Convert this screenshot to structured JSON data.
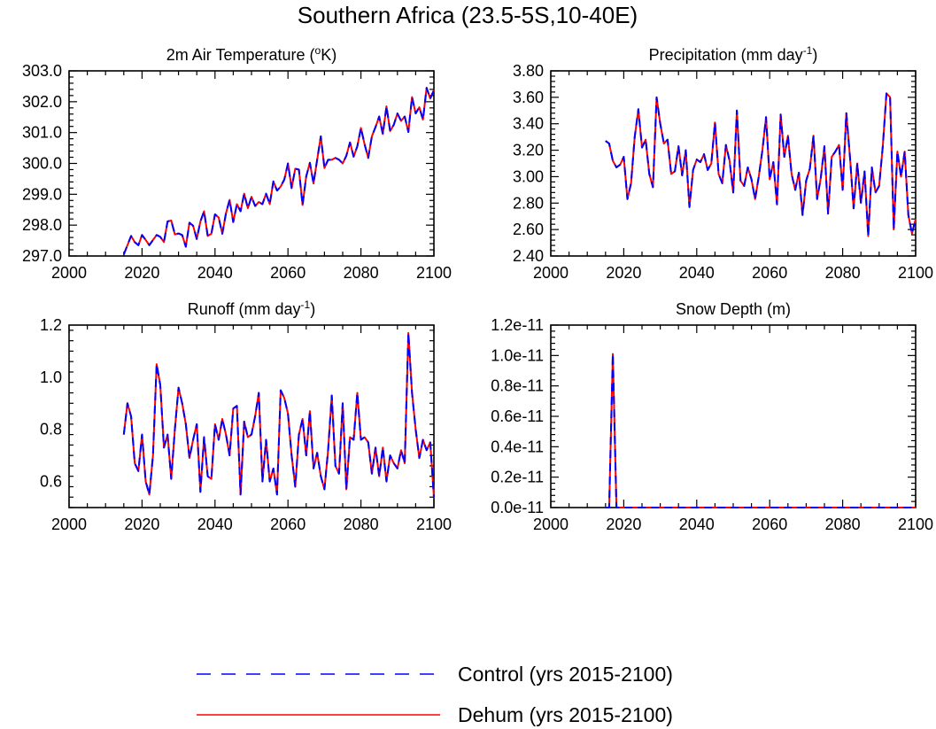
{
  "figure": {
    "title": "Southern Africa (23.5-5S,10-40E)"
  },
  "colors": {
    "control": "#0000ff",
    "dehum": "#ff0000",
    "axis": "#000000",
    "background": "#ffffff"
  },
  "legend": {
    "placement": "bottom-center",
    "entries": [
      {
        "name": "Control (yrs 2015-2100)",
        "color": "#0000ff",
        "style": "dashed"
      },
      {
        "name": "Dehum (yrs 2015-2100)",
        "color": "#ff0000",
        "style": "solid"
      }
    ]
  },
  "chart_data": [
    {
      "type": "line",
      "title": "2m Air Temperature (oK)",
      "title_parts": [
        "2m Air Temperature (",
        "o",
        "K)"
      ],
      "xlabel": "",
      "ylabel": "",
      "xlim": [
        2000,
        2100
      ],
      "ylim": [
        297.0,
        303.0
      ],
      "xticks": [
        2000,
        2020,
        2040,
        2060,
        2080,
        2100
      ],
      "yticks": [
        297.0,
        298.0,
        299.0,
        300.0,
        301.0,
        302.0,
        303.0
      ],
      "ytick_labels": [
        "297.0",
        "298.0",
        "299.0",
        "300.0",
        "301.0",
        "302.0",
        "303.0"
      ],
      "grid": false,
      "x_start": 2015,
      "series": [
        {
          "name": "Control (yrs 2015-2100)",
          "values": [
            297.05,
            297.35,
            297.65,
            297.45,
            297.35,
            297.68,
            297.52,
            297.35,
            297.52,
            297.68,
            297.62,
            297.45,
            298.12,
            298.15,
            297.7,
            297.73,
            297.68,
            297.3,
            298.08,
            297.98,
            297.55,
            298.12,
            298.45,
            297.65,
            297.72,
            298.35,
            298.25,
            297.72,
            298.38,
            298.82,
            298.1,
            298.68,
            298.45,
            299.02,
            298.55,
            298.92,
            298.62,
            298.75,
            298.68,
            299.02,
            298.68,
            299.42,
            299.12,
            299.25,
            299.48,
            300.0,
            299.2,
            299.83,
            299.8,
            298.65,
            299.58,
            300.02,
            299.35,
            300.12,
            300.88,
            299.85,
            300.12,
            300.12,
            300.18,
            300.12,
            300.0,
            300.25,
            300.68,
            300.22,
            300.55,
            301.15,
            300.62,
            300.18,
            300.88,
            301.18,
            301.52,
            300.95,
            301.85,
            301.05,
            301.25,
            301.62,
            301.38,
            301.52,
            301.02,
            302.15,
            301.62,
            301.82,
            301.42,
            302.45,
            302.1,
            302.38
          ]
        },
        {
          "name": "Dehum (yrs 2015-2100)",
          "values": [
            297.05,
            297.35,
            297.65,
            297.45,
            297.35,
            297.68,
            297.52,
            297.35,
            297.52,
            297.68,
            297.62,
            297.45,
            298.12,
            298.15,
            297.7,
            297.73,
            297.68,
            297.3,
            298.08,
            297.98,
            297.55,
            298.12,
            298.45,
            297.65,
            297.72,
            298.35,
            298.25,
            297.72,
            298.38,
            298.82,
            298.1,
            298.68,
            298.45,
            299.02,
            298.55,
            298.92,
            298.62,
            298.75,
            298.68,
            299.02,
            298.68,
            299.42,
            299.12,
            299.25,
            299.48,
            300.0,
            299.2,
            299.83,
            299.8,
            298.65,
            299.58,
            300.02,
            299.35,
            300.12,
            300.88,
            299.85,
            300.12,
            300.12,
            300.18,
            300.12,
            300.0,
            300.25,
            300.68,
            300.22,
            300.55,
            301.15,
            300.62,
            300.18,
            300.88,
            301.18,
            301.52,
            300.95,
            301.85,
            301.05,
            301.25,
            301.62,
            301.38,
            301.52,
            301.02,
            302.15,
            301.62,
            301.82,
            301.42,
            302.45,
            302.1,
            302.38
          ]
        }
      ]
    },
    {
      "type": "line",
      "title": "Precipitation (mm day-1)",
      "title_parts": [
        "Precipitation (mm day",
        "-1",
        ")"
      ],
      "xlabel": "",
      "ylabel": "",
      "xlim": [
        2000,
        2100
      ],
      "ylim": [
        2.4,
        3.8
      ],
      "xticks": [
        2000,
        2020,
        2040,
        2060,
        2080,
        2100
      ],
      "yticks": [
        2.4,
        2.6,
        2.8,
        3.0,
        3.2,
        3.4,
        3.6,
        3.8
      ],
      "ytick_labels": [
        "2.40",
        "2.60",
        "2.80",
        "3.00",
        "3.20",
        "3.40",
        "3.60",
        "3.80"
      ],
      "grid": false,
      "x_start": 2015,
      "series": [
        {
          "name": "Control (yrs 2015-2100)",
          "values": [
            3.27,
            3.25,
            3.12,
            3.07,
            3.09,
            3.15,
            2.83,
            2.95,
            3.3,
            3.51,
            3.22,
            3.28,
            3.02,
            2.92,
            3.6,
            3.4,
            3.25,
            3.28,
            3.02,
            3.04,
            3.23,
            3.01,
            3.2,
            2.77,
            3.05,
            3.13,
            3.11,
            3.17,
            3.05,
            3.1,
            3.41,
            3.02,
            2.95,
            3.24,
            3.12,
            2.88,
            3.5,
            2.97,
            2.93,
            3.07,
            2.98,
            2.83,
            3.0,
            3.2,
            3.45,
            2.98,
            3.11,
            2.79,
            3.47,
            3.15,
            3.31,
            3.02,
            2.9,
            3.03,
            2.71,
            2.97,
            3.06,
            3.31,
            2.83,
            2.99,
            3.23,
            2.72,
            3.15,
            3.19,
            3.24,
            2.9,
            3.48,
            3.15,
            2.76,
            3.1,
            2.8,
            3.04,
            2.55,
            3.07,
            2.88,
            2.93,
            3.23,
            3.63,
            3.6,
            2.6,
            3.19,
            3.0,
            3.19,
            2.71,
            2.57,
            2.68
          ]
        },
        {
          "name": "Dehum (yrs 2015-2100)",
          "values": [
            3.27,
            3.25,
            3.12,
            3.07,
            3.09,
            3.15,
            2.83,
            2.95,
            3.3,
            3.51,
            3.22,
            3.28,
            3.02,
            2.92,
            3.6,
            3.4,
            3.25,
            3.28,
            3.02,
            3.04,
            3.23,
            3.01,
            3.2,
            2.77,
            3.05,
            3.13,
            3.11,
            3.17,
            3.05,
            3.1,
            3.41,
            3.02,
            2.95,
            3.24,
            3.12,
            2.88,
            3.5,
            2.97,
            2.93,
            3.07,
            2.98,
            2.83,
            3.0,
            3.2,
            3.45,
            2.98,
            3.11,
            2.79,
            3.47,
            3.15,
            3.31,
            3.02,
            2.9,
            3.03,
            2.71,
            2.97,
            3.06,
            3.31,
            2.83,
            2.99,
            3.23,
            2.72,
            3.15,
            3.19,
            3.24,
            2.9,
            3.48,
            3.15,
            2.76,
            3.1,
            2.8,
            3.04,
            2.55,
            3.07,
            2.88,
            2.93,
            3.23,
            3.63,
            3.6,
            2.6,
            3.19,
            3.0,
            3.19,
            2.71,
            2.57,
            2.68
          ]
        }
      ]
    },
    {
      "type": "line",
      "title": "Runoff (mm day-1)",
      "title_parts": [
        "Runoff (mm day",
        "-1",
        ")"
      ],
      "xlabel": "",
      "ylabel": "",
      "xlim": [
        2000,
        2100
      ],
      "ylim": [
        0.5,
        1.2
      ],
      "xticks": [
        2000,
        2020,
        2040,
        2060,
        2080,
        2100
      ],
      "yticks": [
        0.6,
        0.8,
        1.0,
        1.2
      ],
      "ytick_labels": [
        "0.6",
        "0.8",
        "1.0",
        "1.2"
      ],
      "grid": false,
      "x_start": 2015,
      "series": [
        {
          "name": "Control (yrs 2015-2100)",
          "values": [
            0.78,
            0.9,
            0.85,
            0.67,
            0.64,
            0.78,
            0.6,
            0.55,
            0.7,
            1.05,
            0.97,
            0.73,
            0.78,
            0.61,
            0.8,
            0.96,
            0.9,
            0.82,
            0.69,
            0.76,
            0.82,
            0.56,
            0.77,
            0.62,
            0.61,
            0.82,
            0.76,
            0.84,
            0.78,
            0.7,
            0.88,
            0.89,
            0.55,
            0.83,
            0.77,
            0.78,
            0.85,
            0.94,
            0.6,
            0.76,
            0.6,
            0.65,
            0.55,
            0.95,
            0.92,
            0.86,
            0.7,
            0.58,
            0.78,
            0.84,
            0.7,
            0.87,
            0.65,
            0.71,
            0.62,
            0.57,
            0.72,
            0.93,
            0.66,
            0.63,
            0.9,
            0.57,
            0.77,
            0.76,
            0.94,
            0.76,
            0.77,
            0.75,
            0.63,
            0.73,
            0.62,
            0.73,
            0.6,
            0.7,
            0.67,
            0.65,
            0.72,
            0.67,
            1.17,
            0.94,
            0.8,
            0.69,
            0.76,
            0.72,
            0.75,
            0.54
          ]
        },
        {
          "name": "Dehum (yrs 2015-2100)",
          "values": [
            0.78,
            0.9,
            0.85,
            0.67,
            0.64,
            0.78,
            0.6,
            0.55,
            0.7,
            1.05,
            0.97,
            0.73,
            0.78,
            0.61,
            0.8,
            0.96,
            0.9,
            0.82,
            0.69,
            0.76,
            0.82,
            0.56,
            0.77,
            0.62,
            0.61,
            0.82,
            0.76,
            0.84,
            0.78,
            0.7,
            0.88,
            0.89,
            0.55,
            0.83,
            0.77,
            0.78,
            0.85,
            0.94,
            0.6,
            0.76,
            0.6,
            0.65,
            0.55,
            0.95,
            0.92,
            0.86,
            0.7,
            0.58,
            0.78,
            0.84,
            0.7,
            0.87,
            0.65,
            0.71,
            0.62,
            0.57,
            0.72,
            0.93,
            0.66,
            0.63,
            0.9,
            0.57,
            0.77,
            0.76,
            0.94,
            0.76,
            0.77,
            0.75,
            0.63,
            0.73,
            0.62,
            0.73,
            0.6,
            0.7,
            0.67,
            0.65,
            0.72,
            0.67,
            1.17,
            0.94,
            0.8,
            0.69,
            0.76,
            0.72,
            0.75,
            0.54
          ]
        }
      ]
    },
    {
      "type": "line",
      "title": "Snow Depth (m)",
      "title_parts": [
        "Snow Depth (m)",
        "",
        ""
      ],
      "xlabel": "",
      "ylabel": "",
      "xlim": [
        2000,
        2100
      ],
      "ylim": [
        0,
        1.2e-11
      ],
      "xticks": [
        2000,
        2020,
        2040,
        2060,
        2080,
        2100
      ],
      "yticks": [
        0,
        2e-12,
        4e-12,
        6e-12,
        8e-12,
        1e-11,
        1.2e-11
      ],
      "ytick_labels": [
        "0.0e-11",
        "0.2e-11",
        "0.4e-11",
        "0.6e-11",
        "0.8e-11",
        "1.0e-11",
        "1.2e-11"
      ],
      "grid": false,
      "x_start": 2015,
      "series": [
        {
          "name": "Control (yrs 2015-2100)",
          "values": [
            0,
            0,
            1.01e-11,
            0,
            0,
            0,
            0,
            0,
            0,
            0,
            0,
            0,
            0,
            0,
            0,
            0,
            0,
            0,
            0,
            0,
            0,
            0,
            0,
            0,
            0,
            0,
            0,
            0,
            0,
            0,
            0,
            0,
            0,
            0,
            0,
            0,
            0,
            0,
            0,
            0,
            0,
            0,
            0,
            0,
            0,
            0,
            0,
            0,
            0,
            0,
            0,
            0,
            0,
            0,
            0,
            0,
            0,
            0,
            0,
            0,
            0,
            0,
            0,
            0,
            0,
            0,
            0,
            0,
            0,
            0,
            0,
            0,
            0,
            0,
            0,
            0,
            0,
            0,
            0,
            0,
            0,
            0,
            0,
            0,
            0,
            0
          ]
        },
        {
          "name": "Dehum (yrs 2015-2100)",
          "values": [
            0,
            0,
            1.01e-11,
            0,
            0,
            0,
            0,
            0,
            0,
            0,
            0,
            0,
            0,
            0,
            0,
            0,
            0,
            0,
            0,
            0,
            0,
            0,
            0,
            0,
            0,
            0,
            0,
            0,
            0,
            0,
            0,
            0,
            0,
            0,
            0,
            0,
            0,
            0,
            0,
            0,
            0,
            0,
            0,
            0,
            0,
            0,
            0,
            0,
            0,
            0,
            0,
            0,
            0,
            0,
            0,
            0,
            0,
            0,
            0,
            0,
            0,
            0,
            0,
            0,
            0,
            0,
            0,
            0,
            0,
            0,
            0,
            0,
            0,
            0,
            0,
            0,
            0,
            0,
            0,
            0,
            0,
            0,
            0,
            0,
            0,
            0
          ]
        }
      ]
    }
  ]
}
